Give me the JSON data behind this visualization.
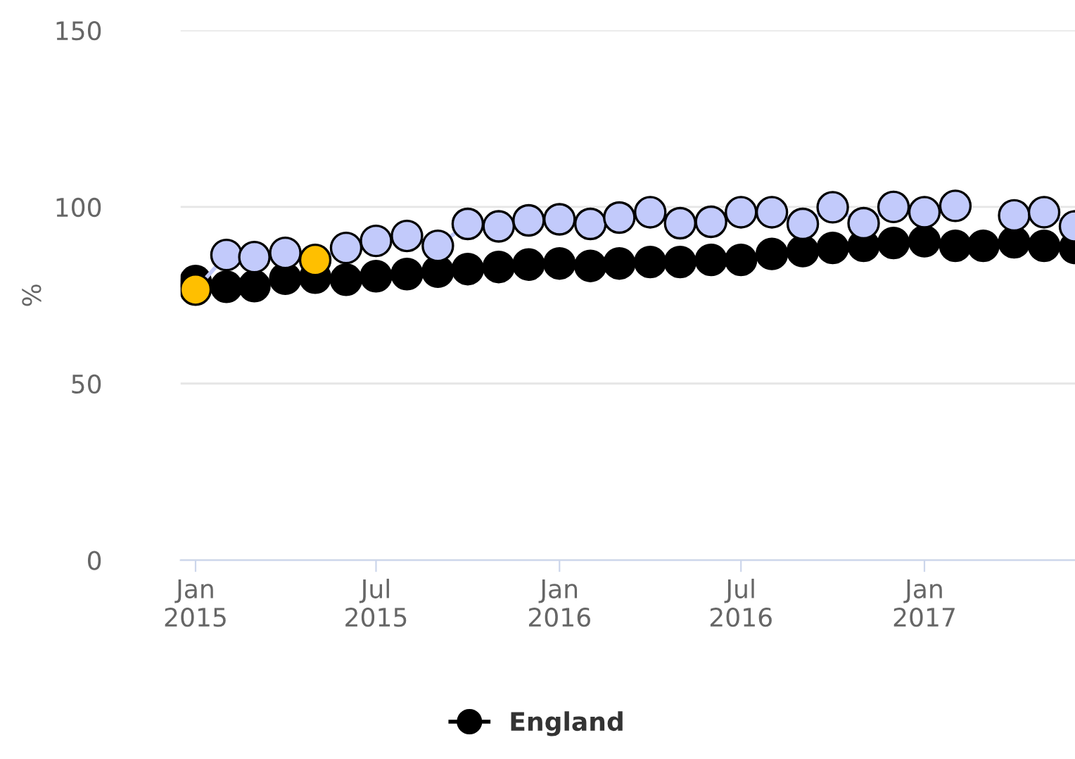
{
  "chart_data": {
    "type": "line",
    "ylabel": "%",
    "x": [
      "2015-01",
      "2015-02",
      "2015-03",
      "2015-04",
      "2015-05",
      "2015-06",
      "2015-07",
      "2015-08",
      "2015-09",
      "2015-10",
      "2015-11",
      "2015-12",
      "2016-01",
      "2016-02",
      "2016-03",
      "2016-04",
      "2016-05",
      "2016-06",
      "2016-07",
      "2016-08",
      "2016-09",
      "2016-10",
      "2016-11",
      "2016-12",
      "2017-01",
      "2017-02",
      "2017-03",
      "2017-04",
      "2017-05",
      "2017-06"
    ],
    "series": [
      {
        "name": "England",
        "type": "scatter",
        "color": "#000000",
        "values": [
          79,
          77.4,
          77.6,
          79.7,
          80,
          79.4,
          80.4,
          81,
          81.7,
          82.4,
          83,
          83.7,
          84,
          83.3,
          84,
          84.4,
          84.4,
          85,
          85,
          86.7,
          87.5,
          88.4,
          89,
          89.8,
          90.3,
          89,
          89,
          90,
          89,
          88.4
        ]
      },
      {
        "color": "#c2cafb",
        "colors": [
          "#ffbf00",
          "#c2cafb",
          "#c2cafb",
          "#c2cafb",
          "#ffbf00",
          "#c2cafb",
          "#c2cafb",
          "#c2cafb",
          "#c2cafb",
          "#c2cafb",
          "#c2cafb",
          "#c2cafb",
          "#c2cafb",
          "#c2cafb",
          "#c2cafb",
          "#c2cafb",
          "#c2cafb",
          "#c2cafb",
          "#c2cafb",
          "#c2cafb",
          "#c2cafb",
          "#c2cafb",
          "#c2cafb",
          "#c2cafb",
          "#c2cafb",
          "#c2cafb",
          "#c2cafb",
          "#c2cafb",
          "#c2cafb",
          "#c2cafb"
        ],
        "values": [
          76.6,
          86.4,
          85.8,
          87,
          85,
          88.4,
          90.4,
          91.8,
          89,
          95.2,
          94.5,
          96.2,
          96.5,
          95.2,
          97,
          98.5,
          95.4,
          95.8,
          98.5,
          98.5,
          95.2,
          99.9,
          95.4,
          100,
          98.5,
          100.3,
          null,
          97.6,
          98.5,
          94.5
        ]
      }
    ],
    "xlim": [
      "2014-12-17",
      "2017-06-01"
    ],
    "xticks": [
      {
        "value": "2015-01-01",
        "label": "Jan\n2015"
      },
      {
        "value": "2015-07-01",
        "label": "Jul\n2015"
      },
      {
        "value": "2016-01-01",
        "label": "Jan\n2016"
      },
      {
        "value": "2016-07-01",
        "label": "Jul\n2016"
      },
      {
        "value": "2017-01-01",
        "label": "Jan\n2017"
      }
    ],
    "ylim": [
      0,
      150
    ],
    "yticks": [
      0,
      50,
      100,
      150
    ],
    "grid": "y",
    "legend": "bottom",
    "marker": "circle",
    "line_style": "solid"
  }
}
